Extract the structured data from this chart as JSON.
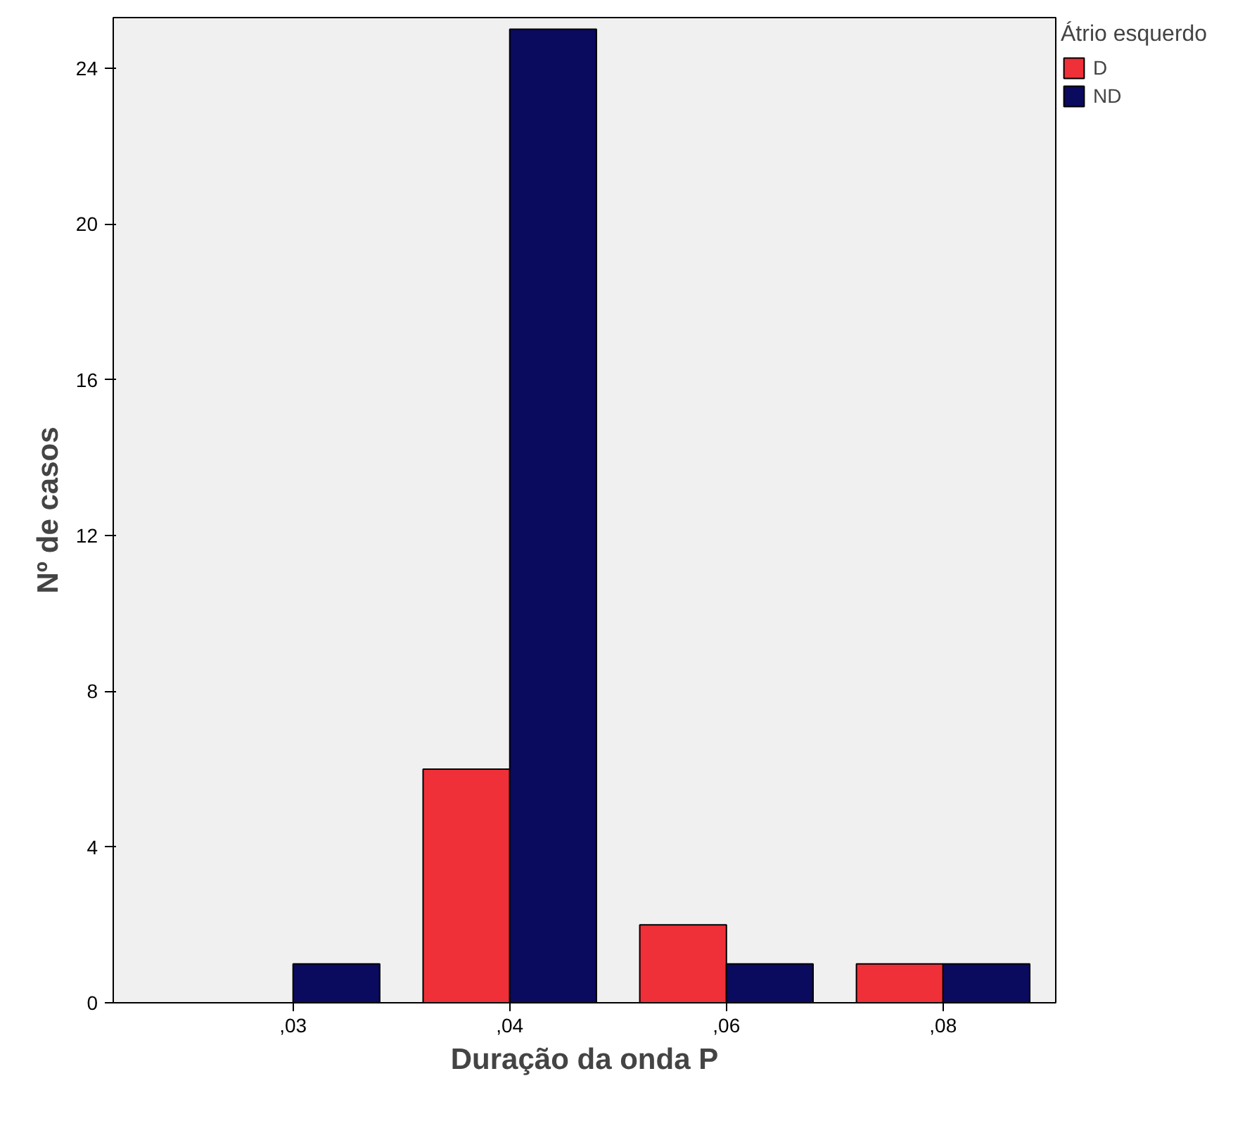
{
  "chart_data": {
    "type": "bar",
    "xlabel": "Duração da onda P",
    "ylabel": "Nº de casos",
    "legend_title": "Átrio esquerdo",
    "legend": "top right",
    "grid": false,
    "categories": [
      ",03",
      ",04",
      ",06",
      ",08"
    ],
    "series": [
      {
        "name": "D",
        "color": "#ef3038",
        "values": [
          null,
          6,
          2,
          1
        ]
      },
      {
        "name": "ND",
        "color": "#0a0a5e",
        "values": [
          1,
          25,
          1,
          1
        ]
      }
    ],
    "ylim": [
      0,
      25.3
    ],
    "yticks": [
      0,
      4,
      8,
      12,
      16,
      20,
      24
    ]
  }
}
